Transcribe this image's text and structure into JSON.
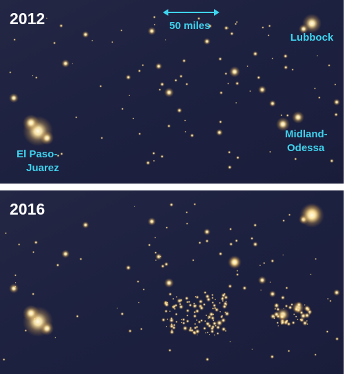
{
  "scale_bar": "50 miles",
  "panels": [
    {
      "year": "2012",
      "labels": {
        "lubbock": "Lubbock",
        "el_paso": [
          "El Paso-",
          "Juarez"
        ],
        "midland": [
          "Midland-",
          "Odessa"
        ]
      }
    },
    {
      "year": "2016"
    }
  ]
}
